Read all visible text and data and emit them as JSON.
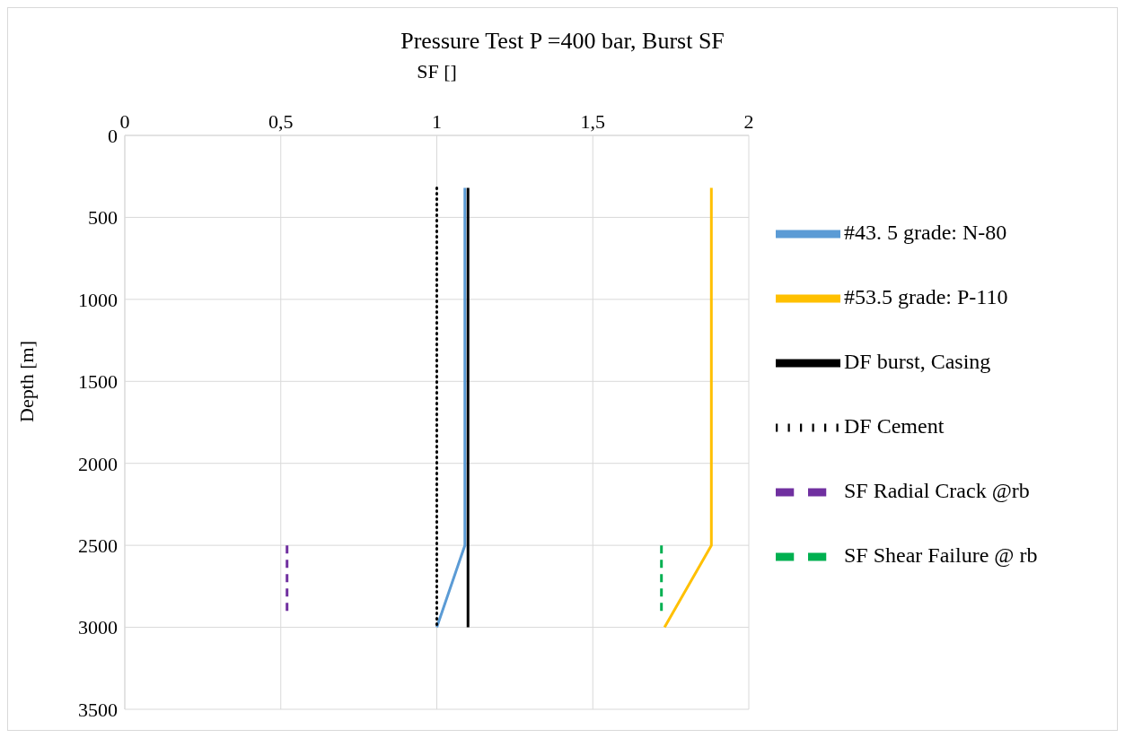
{
  "chart_data": {
    "type": "line",
    "title": "Pressure Test P =400 bar, Burst SF",
    "xlabel": "SF []",
    "ylabel": "Depth [m]",
    "xlim": [
      0,
      2
    ],
    "xticks": [
      0,
      {
        "value": 0.5,
        "label": "0,5"
      },
      1,
      {
        "value": 1.5,
        "label": "1,5"
      },
      2
    ],
    "ylim": [
      3500,
      0
    ],
    "yticks": [
      0,
      500,
      1000,
      1500,
      2000,
      2500,
      3000,
      3500
    ],
    "grid": true,
    "legend": "right",
    "marker": "none",
    "series": [
      {
        "name": "#43. 5 grade: N-80",
        "color": "#5b9bd5",
        "line_style": "solid",
        "x": [
          1.09,
          1.09,
          1.0
        ],
        "values": [
          320,
          2500,
          3000
        ]
      },
      {
        "name": "#53.5 grade: P-110",
        "color": "#ffc000",
        "line_style": "solid",
        "x": [
          1.88,
          1.88,
          1.73
        ],
        "values": [
          320,
          2500,
          3000
        ]
      },
      {
        "name": "DF burst, Casing",
        "color": "#000000",
        "line_style": "solid",
        "x": [
          1.1,
          1.1
        ],
        "values": [
          320,
          3000
        ]
      },
      {
        "name": "DF Cement",
        "color": "#000000",
        "line_style": "dotted",
        "x": [
          1.0,
          1.0
        ],
        "values": [
          320,
          3000
        ]
      },
      {
        "name": "SF Radial Crack @rb",
        "color": "#7030a0",
        "line_style": "dashed",
        "x": [
          0.52,
          0.52
        ],
        "values": [
          2500,
          2920
        ]
      },
      {
        "name": "SF Shear Failure @ rb",
        "color": "#00b050",
        "line_style": "dashed",
        "x": [
          1.72,
          1.72
        ],
        "values": [
          2500,
          2920
        ]
      }
    ]
  }
}
